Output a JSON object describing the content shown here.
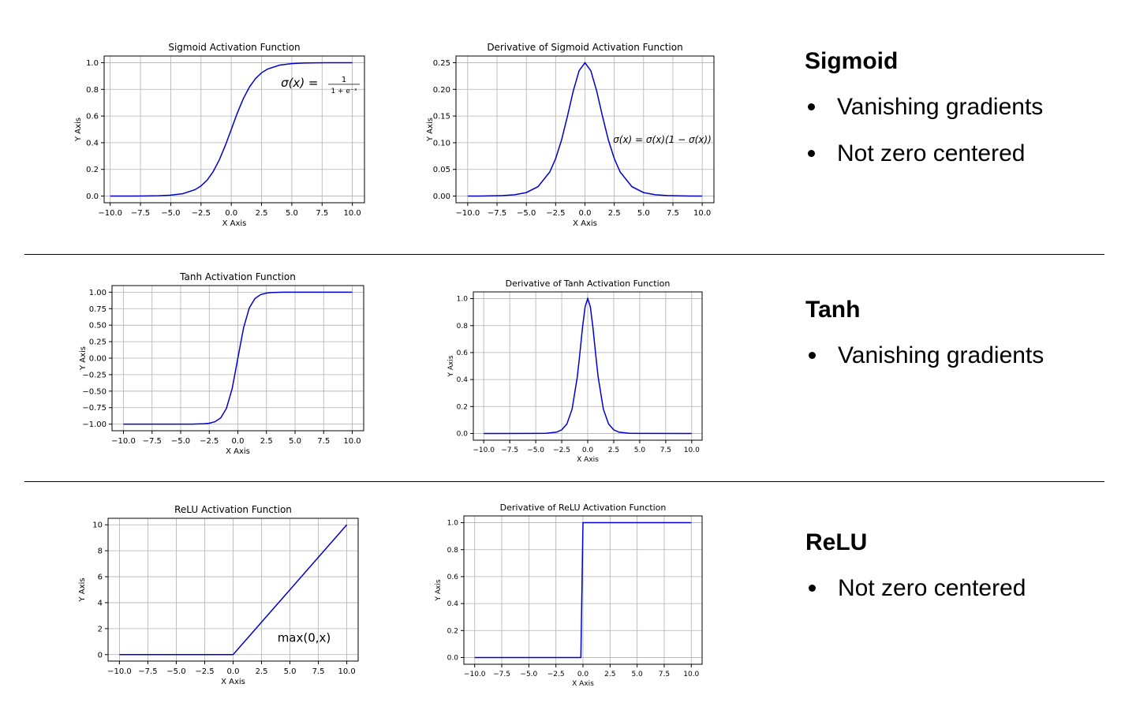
{
  "chart_data": [
    {
      "id": "sigmoid",
      "type": "line",
      "title": "Sigmoid Activation Function",
      "xlabel": "X Axis",
      "ylabel": "Y Axis",
      "xlim": [
        -10.5,
        11
      ],
      "ylim": [
        -0.05,
        1.05
      ],
      "xticks": [
        -10,
        -7.5,
        -5,
        -2.5,
        0,
        2.5,
        5,
        7.5,
        10
      ],
      "xtick_labels": [
        "−10.0",
        "−7.5",
        "−5.0",
        "−2.5",
        "0.0",
        "2.5",
        "5.0",
        "7.5",
        "10.0"
      ],
      "yticks": [
        0,
        0.2,
        0.4,
        0.6,
        0.8,
        1.0
      ],
      "ytick_labels": [
        "0.0",
        "0.2",
        "0.4",
        "0.6",
        "0.8",
        "1.0"
      ],
      "grid": true,
      "line_color": "#0000d0",
      "series": [
        {
          "x": [
            -10,
            -9,
            -8,
            -7,
            -6,
            -5,
            -4,
            -3,
            -2.5,
            -2,
            -1.5,
            -1,
            -0.5,
            0,
            0.5,
            1,
            1.5,
            2,
            2.5,
            3,
            4,
            5,
            6,
            7,
            8,
            9,
            10
          ],
          "y": [
            0.0,
            0.0001,
            0.0003,
            0.0009,
            0.0025,
            0.0067,
            0.018,
            0.0474,
            0.0759,
            0.1192,
            0.1824,
            0.2689,
            0.3775,
            0.5,
            0.6225,
            0.7311,
            0.8176,
            0.8808,
            0.9241,
            0.9526,
            0.982,
            0.9933,
            0.9975,
            0.9991,
            0.9997,
            0.9999,
            1.0
          ]
        }
      ],
      "annotation": {
        "text": "σ(x) = 1/(1 + e⁻ˣ)",
        "main": "σ(x) =",
        "num": "1",
        "den": "1 + e⁻ˣ"
      }
    },
    {
      "id": "sigmoid-derivative",
      "type": "line",
      "title": "Derivative of Sigmoid Activation Function",
      "xlabel": "X Axis",
      "ylabel": "Y Axis",
      "xlim": [
        -11,
        11
      ],
      "ylim": [
        -0.0125,
        0.2625
      ],
      "xticks": [
        -10,
        -7.5,
        -5,
        -2.5,
        0,
        2.5,
        5,
        7.5,
        10
      ],
      "xtick_labels": [
        "−10.0",
        "−7.5",
        "−5.0",
        "−2.5",
        "0.0",
        "2.5",
        "5.0",
        "7.5",
        "10.0"
      ],
      "yticks": [
        0,
        0.05,
        0.1,
        0.15,
        0.2,
        0.25
      ],
      "ytick_labels": [
        "0.00",
        "0.05",
        "0.10",
        "0.15",
        "0.20",
        "0.25"
      ],
      "grid": true,
      "line_color": "#0000d0",
      "series": [
        {
          "x": [
            -10,
            -9,
            -8,
            -7,
            -6,
            -5,
            -4,
            -3,
            -2.5,
            -2,
            -1.5,
            -1,
            -0.5,
            0,
            0.5,
            1,
            1.5,
            2,
            2.5,
            3,
            4,
            5,
            6,
            7,
            8,
            9,
            10
          ],
          "y": [
            0.0,
            0.0001,
            0.0003,
            0.0009,
            0.0025,
            0.0066,
            0.0177,
            0.0452,
            0.0701,
            0.105,
            0.1491,
            0.1966,
            0.235,
            0.25,
            0.235,
            0.1966,
            0.1491,
            0.105,
            0.0701,
            0.0452,
            0.0177,
            0.0066,
            0.0025,
            0.0009,
            0.0003,
            0.0001,
            0.0
          ]
        }
      ],
      "annotation": {
        "text": "σ(x)  = σ(x)(1 − σ(x))"
      }
    },
    {
      "id": "tanh",
      "type": "line",
      "title": "Tanh Activation Function",
      "xlabel": "X Axis",
      "ylabel": "Y Axis",
      "xlim": [
        -11,
        11
      ],
      "ylim": [
        -1.1,
        1.1
      ],
      "xticks": [
        -10,
        -7.5,
        -5,
        -2.5,
        0,
        2.5,
        5,
        7.5,
        10
      ],
      "xtick_labels": [
        "−10.0",
        "−7.5",
        "−5.0",
        "−2.5",
        "0.0",
        "2.5",
        "5.0",
        "7.5",
        "10.0"
      ],
      "yticks": [
        -1,
        -0.75,
        -0.5,
        -0.25,
        0,
        0.25,
        0.5,
        0.75,
        1
      ],
      "ytick_labels": [
        "−1.00",
        "−0.75",
        "−0.50",
        "−0.25",
        "0.00",
        "0.25",
        "0.50",
        "0.75",
        "1.00"
      ],
      "grid": true,
      "line_color": "#0000d0",
      "series": [
        {
          "x": [
            -10,
            -6,
            -4,
            -3,
            -2.5,
            -2,
            -1.5,
            -1,
            -0.5,
            0,
            0.5,
            1,
            1.5,
            2,
            2.5,
            3,
            4,
            6,
            10
          ],
          "y": [
            -1,
            -1,
            -0.9993,
            -0.9951,
            -0.9866,
            -0.964,
            -0.9051,
            -0.7616,
            -0.4621,
            0,
            0.4621,
            0.7616,
            0.9051,
            0.964,
            0.9866,
            0.9951,
            0.9993,
            1,
            1
          ]
        }
      ]
    },
    {
      "id": "tanh-derivative",
      "type": "line",
      "title": "Derivative of Tanh Activation Function",
      "xlabel": "X Axis",
      "ylabel": "Y Axis",
      "xlim": [
        -11,
        11
      ],
      "ylim": [
        -0.05,
        1.05
      ],
      "xticks": [
        -10,
        -7.5,
        -5,
        -2.5,
        0,
        2.5,
        5,
        7.5,
        10
      ],
      "xtick_labels": [
        "−10.0",
        "−7.5",
        "−5.0",
        "−2.5",
        "0.0",
        "2.5",
        "5.0",
        "7.5",
        "10.0"
      ],
      "yticks": [
        0,
        0.2,
        0.4,
        0.6,
        0.8,
        1.0
      ],
      "ytick_labels": [
        "0.0",
        "0.2",
        "0.4",
        "0.6",
        "0.8",
        "1.0"
      ],
      "grid": true,
      "line_color": "#0000d0",
      "series": [
        {
          "x": [
            -10,
            -5,
            -4,
            -3,
            -2.5,
            -2,
            -1.5,
            -1,
            -0.75,
            -0.5,
            -0.25,
            0,
            0.25,
            0.5,
            0.75,
            1,
            1.5,
            2,
            2.5,
            3,
            4,
            5,
            10
          ],
          "y": [
            0,
            0.0002,
            0.0013,
            0.0099,
            0.0266,
            0.0707,
            0.1807,
            0.42,
            0.5972,
            0.7864,
            0.9398,
            1,
            0.9398,
            0.7864,
            0.5972,
            0.42,
            0.1807,
            0.0707,
            0.0266,
            0.0099,
            0.0013,
            0.0002,
            0
          ]
        }
      ]
    },
    {
      "id": "relu",
      "type": "line",
      "title": "ReLU Activation Function",
      "xlabel": "X Axis",
      "ylabel": "Y Axis",
      "xlim": [
        -11,
        11
      ],
      "ylim": [
        -0.5,
        10.5
      ],
      "xticks": [
        -10,
        -7.5,
        -5,
        -2.5,
        0,
        2.5,
        5,
        7.5,
        10
      ],
      "xtick_labels": [
        "−10.0",
        "−7.5",
        "−5.0",
        "−2.5",
        "0.0",
        "2.5",
        "5.0",
        "7.5",
        "10.0"
      ],
      "yticks": [
        0,
        2,
        4,
        6,
        8,
        10
      ],
      "ytick_labels": [
        "0",
        "2",
        "4",
        "6",
        "8",
        "10"
      ],
      "grid": true,
      "line_color": "#0000d0",
      "series": [
        {
          "x": [
            -10,
            0,
            10
          ],
          "y": [
            0,
            0,
            10
          ]
        }
      ],
      "annotation": {
        "text": "max(0,x)"
      }
    },
    {
      "id": "relu-derivative",
      "type": "line",
      "title": "Derivative of ReLU Activation Function",
      "xlabel": "X Axis",
      "ylabel": "Y Axis",
      "xlim": [
        -11,
        11
      ],
      "ylim": [
        -0.05,
        1.05
      ],
      "xticks": [
        -10,
        -7.5,
        -5,
        -2.5,
        0,
        2.5,
        5,
        7.5,
        10
      ],
      "xtick_labels": [
        "−10.0",
        "−7.5",
        "−5.0",
        "−2.5",
        "0.0",
        "2.5",
        "5.0",
        "7.5",
        "10.0"
      ],
      "yticks": [
        0,
        0.2,
        0.4,
        0.6,
        0.8,
        1.0
      ],
      "ytick_labels": [
        "0.0",
        "0.2",
        "0.4",
        "0.6",
        "0.8",
        "1.0"
      ],
      "grid": true,
      "line_color": "#0000d0",
      "series": [
        {
          "x": [
            -10,
            -0.2,
            0,
            10
          ],
          "y": [
            0,
            0,
            1,
            1
          ]
        }
      ]
    }
  ],
  "sections": [
    {
      "heading": "Sigmoid",
      "bullets": [
        "Vanishing gradients",
        "Not zero centered"
      ]
    },
    {
      "heading": "Tanh",
      "bullets": [
        "Vanishing gradients"
      ]
    },
    {
      "heading": "ReLU",
      "bullets": [
        "Not zero centered"
      ]
    }
  ]
}
